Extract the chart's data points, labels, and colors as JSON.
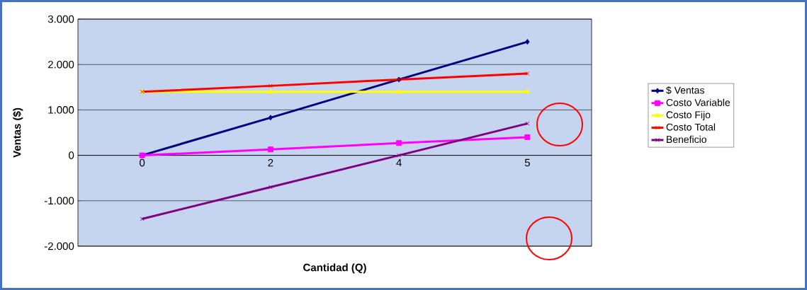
{
  "chart_data": {
    "type": "line",
    "xlabel": "Cantidad (Q)",
    "ylabel": "Ventas ($)",
    "categories": [
      "0",
      "2",
      "4",
      "5"
    ],
    "series": [
      {
        "name": "$ Ventas",
        "color": "#000080",
        "marker": "diamond",
        "values": [
          0,
          830,
          1670,
          2500
        ]
      },
      {
        "name": "Costo Variable",
        "color": "#ff00ff",
        "marker": "square",
        "values": [
          0,
          130,
          270,
          400
        ]
      },
      {
        "name": "Costo Fijo",
        "color": "#ffff00",
        "marker": "triangle",
        "values": [
          1400,
          1400,
          1400,
          1400
        ]
      },
      {
        "name": "Costo Total",
        "color": "#ff0000",
        "marker": "cross",
        "values": [
          1400,
          1530,
          1670,
          1800
        ]
      },
      {
        "name": "Beneficio",
        "color": "#800080",
        "marker": "cross",
        "values": [
          -1400,
          -700,
          0,
          700
        ]
      }
    ],
    "ylim": [
      -2000,
      3000
    ],
    "yticks": [
      {
        "value": -2000,
        "label": "-2.000"
      },
      {
        "value": -1000,
        "label": "-1.000"
      },
      {
        "value": 0,
        "label": "0"
      },
      {
        "value": 1000,
        "label": "1.000"
      },
      {
        "value": 2000,
        "label": "2.000"
      },
      {
        "value": 3000,
        "label": "3.000"
      }
    ],
    "grid": "y",
    "legend": "right",
    "line_style": "solid"
  }
}
